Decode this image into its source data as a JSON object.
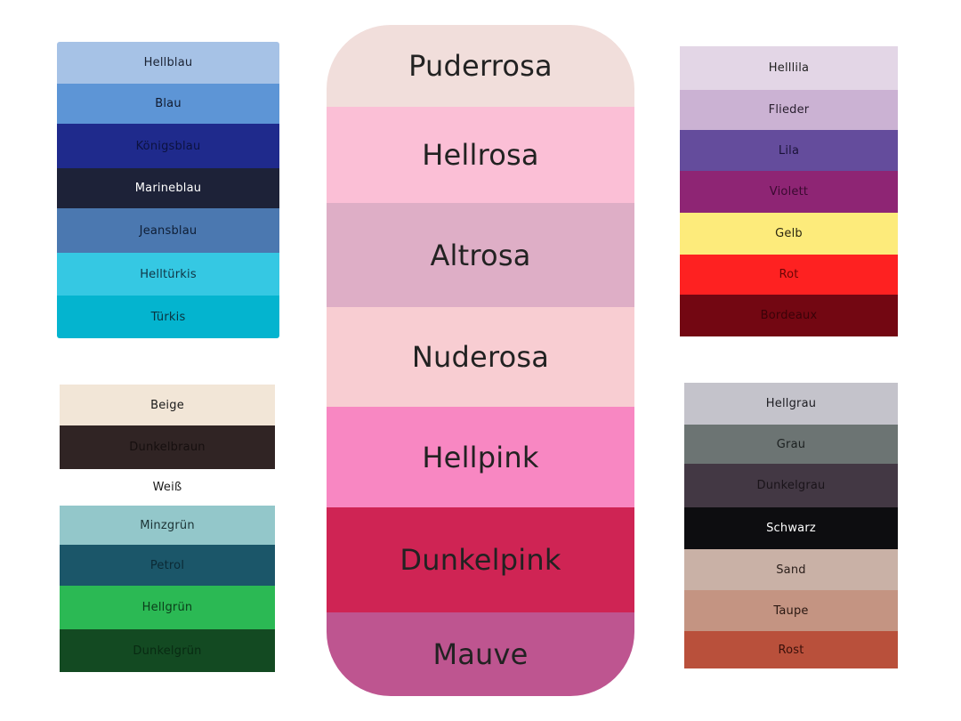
{
  "panels": {
    "blue": [
      {
        "label": "Hellblau",
        "color": "#a6c2e6",
        "text": "#1a2233"
      },
      {
        "label": "Blau",
        "color": "#5d95d6",
        "text": "#111a2e"
      },
      {
        "label": "Königsblau",
        "color": "#1f2a8c",
        "text": "#0c1240"
      },
      {
        "label": "Marineblau",
        "color": "#1d2238",
        "text": "#ffffff"
      },
      {
        "label": "Jeansblau",
        "color": "#4b78b0",
        "text": "#0f1e35"
      },
      {
        "label": "Helltürkis",
        "color": "#35c8e3",
        "text": "#103545"
      },
      {
        "label": "Türkis",
        "color": "#04b4cf",
        "text": "#0a3340"
      }
    ],
    "purple": [
      {
        "label": "Helllila",
        "color": "#e3d6e6",
        "text": "#222"
      },
      {
        "label": "Flieder",
        "color": "#cbb2d3",
        "text": "#2a2030"
      },
      {
        "label": "Lila",
        "color": "#644c9c",
        "text": "#1a1238"
      },
      {
        "label": "Violett",
        "color": "#8e2574",
        "text": "#3a0a30"
      },
      {
        "label": "Gelb",
        "color": "#fdeb7b",
        "text": "#2a2510"
      },
      {
        "label": "Rot",
        "color": "#fe2121",
        "text": "#6a0505"
      },
      {
        "label": "Bordeaux",
        "color": "#730712",
        "text": "#3a0208"
      }
    ],
    "green": [
      {
        "label": "Beige",
        "color": "#f2e6d7",
        "text": "#1a1a1a"
      },
      {
        "label": "Dunkelbraun",
        "color": "#302424",
        "text": "#160f0f"
      },
      {
        "label": "Weiß",
        "color": "#ffffff",
        "text": "#1a1a1a"
      },
      {
        "label": "Minzgrün",
        "color": "#93c7ca",
        "text": "#1c3335"
      },
      {
        "label": "Petrol",
        "color": "#1b5669",
        "text": "#0b2a35"
      },
      {
        "label": "Hellgrün",
        "color": "#2bb954",
        "text": "#0b3d1a"
      },
      {
        "label": "Dunkelgrün",
        "color": "#134a22",
        "text": "#082a12"
      }
    ],
    "grey": [
      {
        "label": "Hellgrau",
        "color": "#c4c3cb",
        "text": "#1d1d22"
      },
      {
        "label": "Grau",
        "color": "#6c7473",
        "text": "#1c2020"
      },
      {
        "label": "Dunkelgrau",
        "color": "#433844",
        "text": "#1a141a"
      },
      {
        "label": "Schwarz",
        "color": "#0d0d10",
        "text": "#ffffff"
      },
      {
        "label": "Sand",
        "color": "#c9b1a6",
        "text": "#2a1e1a"
      },
      {
        "label": "Taupe",
        "color": "#c49482",
        "text": "#2a1812"
      },
      {
        "label": "Rost",
        "color": "#b9503b",
        "text": "#3a100a"
      }
    ],
    "pink": [
      {
        "label": "Puderrosa",
        "color": "#f1dedb",
        "text": "#222"
      },
      {
        "label": "Hellrosa",
        "color": "#fbbfd6",
        "text": "#222"
      },
      {
        "label": "Altrosa",
        "color": "#deaec6",
        "text": "#222"
      },
      {
        "label": "Nuderosa",
        "color": "#f8cdd2",
        "text": "#222"
      },
      {
        "label": "Hellpink",
        "color": "#f887c2",
        "text": "#222"
      },
      {
        "label": "Dunkelpink",
        "color": "#cf2454",
        "text": "#222"
      },
      {
        "label": "Mauve",
        "color": "#be5590",
        "text": "#222"
      }
    ]
  }
}
